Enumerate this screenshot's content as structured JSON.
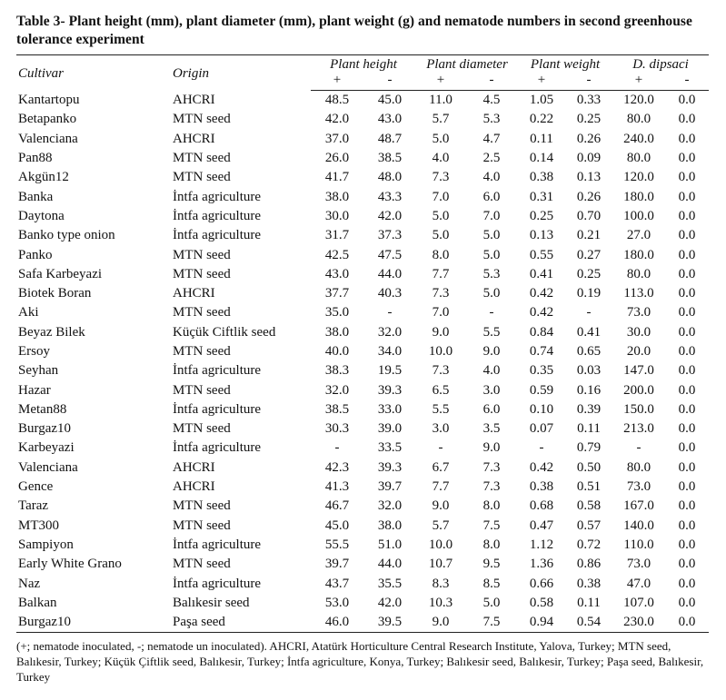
{
  "title": "Table 3- Plant height (mm), plant diameter (mm), plant weight (g) and nematode numbers in second greenhouse tolerance experiment",
  "headers": {
    "cultivar": "Cultivar",
    "origin": "Origin",
    "plant_height": "Plant height",
    "plant_diameter": "Plant diameter",
    "plant_weight": "Plant weight",
    "d_dipsaci": "D. dipsaci",
    "plus": "+",
    "minus": "-"
  },
  "rows": [
    [
      "Kantartopu",
      "AHCRI",
      "48.5",
      "45.0",
      "11.0",
      "4.5",
      "1.05",
      "0.33",
      "120.0",
      "0.0"
    ],
    [
      "Betapanko",
      "MTN seed",
      "42.0",
      "43.0",
      "5.7",
      "5.3",
      "0.22",
      "0.25",
      "80.0",
      "0.0"
    ],
    [
      "Valenciana",
      "AHCRI",
      "37.0",
      "48.7",
      "5.0",
      "4.7",
      "0.11",
      "0.26",
      "240.0",
      "0.0"
    ],
    [
      "Pan88",
      "MTN seed",
      "26.0",
      "38.5",
      "4.0",
      "2.5",
      "0.14",
      "0.09",
      "80.0",
      "0.0"
    ],
    [
      "Akgün12",
      "MTN seed",
      "41.7",
      "48.0",
      "7.3",
      "4.0",
      "0.38",
      "0.13",
      "120.0",
      "0.0"
    ],
    [
      "Banka",
      "İntfa agriculture",
      "38.0",
      "43.3",
      "7.0",
      "6.0",
      "0.31",
      "0.26",
      "180.0",
      "0.0"
    ],
    [
      "Daytona",
      "İntfa agriculture",
      "30.0",
      "42.0",
      "5.0",
      "7.0",
      "0.25",
      "0.70",
      "100.0",
      "0.0"
    ],
    [
      "Banko type onion",
      "İntfa agriculture",
      "31.7",
      "37.3",
      "5.0",
      "5.0",
      "0.13",
      "0.21",
      "27.0",
      "0.0"
    ],
    [
      "Panko",
      "MTN seed",
      "42.5",
      "47.5",
      "8.0",
      "5.0",
      "0.55",
      "0.27",
      "180.0",
      "0.0"
    ],
    [
      "Safa Karbeyazi",
      "MTN seed",
      "43.0",
      "44.0",
      "7.7",
      "5.3",
      "0.41",
      "0.25",
      "80.0",
      "0.0"
    ],
    [
      "Biotek Boran",
      "AHCRI",
      "37.7",
      "40.3",
      "7.3",
      "5.0",
      "0.42",
      "0.19",
      "113.0",
      "0.0"
    ],
    [
      "Aki",
      "MTN seed",
      "35.0",
      "-",
      "7.0",
      "-",
      "0.42",
      "-",
      "73.0",
      "0.0"
    ],
    [
      "Beyaz Bilek",
      "Küçük Ciftlik seed",
      "38.0",
      "32.0",
      "9.0",
      "5.5",
      "0.84",
      "0.41",
      "30.0",
      "0.0"
    ],
    [
      "Ersoy",
      "MTN seed",
      "40.0",
      "34.0",
      "10.0",
      "9.0",
      "0.74",
      "0.65",
      "20.0",
      "0.0"
    ],
    [
      "Seyhan",
      "İntfa agriculture",
      "38.3",
      "19.5",
      "7.3",
      "4.0",
      "0.35",
      "0.03",
      "147.0",
      "0.0"
    ],
    [
      "Hazar",
      "MTN seed",
      "32.0",
      "39.3",
      "6.5",
      "3.0",
      "0.59",
      "0.16",
      "200.0",
      "0.0"
    ],
    [
      "Metan88",
      "İntfa agriculture",
      "38.5",
      "33.0",
      "5.5",
      "6.0",
      "0.10",
      "0.39",
      "150.0",
      "0.0"
    ],
    [
      "Burgaz10",
      "MTN seed",
      "30.3",
      "39.0",
      "3.0",
      "3.5",
      "0.07",
      "0.11",
      "213.0",
      "0.0"
    ],
    [
      "Karbeyazi",
      "İntfa agriculture",
      "-",
      "33.5",
      "-",
      "9.0",
      "-",
      "0.79",
      "-",
      "0.0"
    ],
    [
      "Valenciana",
      "AHCRI",
      "42.3",
      "39.3",
      "6.7",
      "7.3",
      "0.42",
      "0.50",
      "80.0",
      "0.0"
    ],
    [
      "Gence",
      "AHCRI",
      "41.3",
      "39.7",
      "7.7",
      "7.3",
      "0.38",
      "0.51",
      "73.0",
      "0.0"
    ],
    [
      "Taraz",
      "MTN seed",
      "46.7",
      "32.0",
      "9.0",
      "8.0",
      "0.68",
      "0.58",
      "167.0",
      "0.0"
    ],
    [
      "MT300",
      "MTN seed",
      "45.0",
      "38.0",
      "5.7",
      "7.5",
      "0.47",
      "0.57",
      "140.0",
      "0.0"
    ],
    [
      "Sampiyon",
      "İntfa agriculture",
      "55.5",
      "51.0",
      "10.0",
      "8.0",
      "1.12",
      "0.72",
      "110.0",
      "0.0"
    ],
    [
      "Early White Grano",
      "MTN seed",
      "39.7",
      "44.0",
      "10.7",
      "9.5",
      "1.36",
      "0.86",
      "73.0",
      "0.0"
    ],
    [
      "Naz",
      "İntfa agriculture",
      "43.7",
      "35.5",
      "8.3",
      "8.5",
      "0.66",
      "0.38",
      "47.0",
      "0.0"
    ],
    [
      "Balkan",
      "Balıkesir seed",
      "53.0",
      "42.0",
      "10.3",
      "5.0",
      "0.58",
      "0.11",
      "107.0",
      "0.0"
    ],
    [
      "Burgaz10",
      "Paşa seed",
      "46.0",
      "39.5",
      "9.0",
      "7.5",
      "0.94",
      "0.54",
      "230.0",
      "0.0"
    ]
  ],
  "footnote": "(+; nematode inoculated, -; nematode un inoculated). AHCRI, Atatürk Horticulture Central Research Institute, Yalova, Turkey; MTN seed, Balıkesir, Turkey; Küçük Çiftlik seed, Balıkesir, Turkey; İntfa agriculture, Konya, Turkey; Balıkesir seed, Balıkesir, Turkey; Paşa seed, Balıkesir, Turkey"
}
